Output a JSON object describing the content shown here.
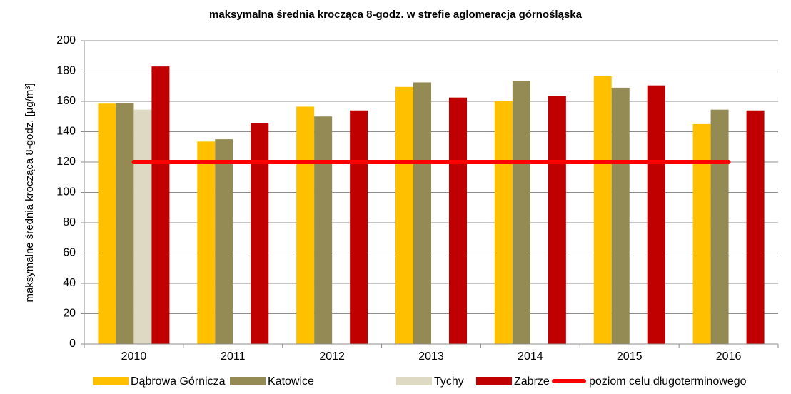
{
  "chart_data": {
    "type": "bar",
    "title": "maksymalna średnia krocząca 8-godz. w strefie aglomeracja górnośląska",
    "ylabel": "maksymalne średnia krocząca 8-godz. [µg/m³]",
    "categories": [
      "2010",
      "2011",
      "2012",
      "2013",
      "2014",
      "2015",
      "2016"
    ],
    "series": [
      {
        "name": "Dąbrowa Górnicza",
        "color": "#FFC000",
        "values": [
          158.5,
          133.5,
          156.5,
          169.5,
          160,
          176.5,
          145
        ]
      },
      {
        "name": "Katowice",
        "color": "#948A54",
        "values": [
          159,
          135,
          150,
          172.5,
          173.5,
          169,
          154.5
        ]
      },
      {
        "name": "Tychy",
        "color": "#DDD9C3",
        "values": [
          154.5,
          null,
          null,
          null,
          null,
          null,
          null
        ]
      },
      {
        "name": "Zabrze",
        "color": "#C00000",
        "values": [
          183,
          145.5,
          154,
          162.5,
          163.5,
          170.5,
          154
        ]
      },
      {
        "name": "poziom celu długoterminowego",
        "type": "line",
        "color": "#FF0000",
        "values": [
          120,
          120,
          120,
          120,
          120,
          120,
          120
        ]
      }
    ],
    "ylim": [
      0,
      200
    ],
    "yticks": [
      0,
      20,
      40,
      60,
      80,
      100,
      120,
      140,
      160,
      180,
      200
    ],
    "grid": true
  }
}
